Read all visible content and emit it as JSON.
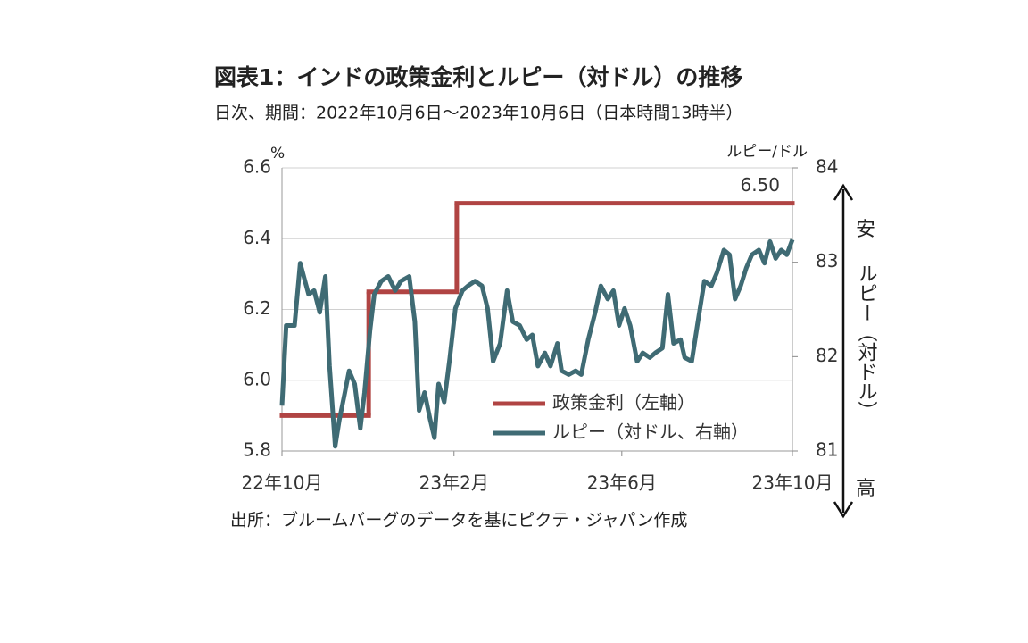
{
  "chart_data": {
    "type": "line",
    "title": "図表1：インドの政策金利とルピー（対ドル）の推移",
    "subtitle": "日次、期間：2022年10月6日～2023年10月6日（日本時間13時半）",
    "source": "出所：ブルームバーグのデータを基にピクテ・ジャパン作成",
    "ylabel": "%",
    "y2label": "ルピー/ドル",
    "ylim": [
      5.8,
      6.6
    ],
    "yticks": [
      5.8,
      {
        "value": 6,
        "label": "6.0"
      },
      6.2,
      6.4,
      6.6
    ],
    "y2lim": [
      81,
      84
    ],
    "y2ticks": [
      81,
      82,
      83,
      84
    ],
    "xlim": [
      "2022-10-06",
      "2023-10-06"
    ],
    "xticks": [
      {
        "value": "2022-10-06",
        "label": "22年10月"
      },
      {
        "value": "2023-02-06",
        "label": "23年2月"
      },
      {
        "value": "2023-06-06",
        "label": "23年6月"
      },
      {
        "value": "2023-10-06",
        "label": "23年10月"
      }
    ],
    "grid": true,
    "legend": "lower right",
    "annotations": {
      "weak": "安",
      "axis_note": "ルピー（対ドル）",
      "strong": "高"
    },
    "series": [
      {
        "name": "政策金利（左軸）",
        "color": "#b04443",
        "step": "post",
        "x": [
          "2022-10-06",
          "2022-12-07",
          "2023-02-08"
        ],
        "values": [
          5.9,
          6.25,
          6.5
        ],
        "value_labels": [
          null,
          null,
          "6.50"
        ]
      },
      {
        "name": "ルピー（対ドル、右軸）",
        "color": "#3f6b74",
        "axis": "y2",
        "x": [
          "2022-10-06",
          "2022-10-09",
          "2022-10-15",
          "2022-10-19",
          "2022-10-25",
          "2022-10-29",
          "2022-11-02",
          "2022-11-06",
          "2022-11-09",
          "2022-11-13",
          "2022-11-16",
          "2022-11-20",
          "2022-11-23",
          "2022-11-27",
          "2022-12-01",
          "2022-12-04",
          "2022-12-08",
          "2022-12-11",
          "2022-12-16",
          "2022-12-21",
          "2022-12-26",
          "2022-12-30",
          "2023-01-05",
          "2023-01-09",
          "2023-01-12",
          "2023-01-16",
          "2023-01-20",
          "2023-01-23",
          "2023-01-26",
          "2023-01-30",
          "2023-02-03",
          "2023-02-07",
          "2023-02-12",
          "2023-02-16",
          "2023-02-21",
          "2023-02-26",
          "2023-03-02",
          "2023-03-06",
          "2023-03-11",
          "2023-03-16",
          "2023-03-20",
          "2023-03-25",
          "2023-03-30",
          "2023-04-03",
          "2023-04-07",
          "2023-04-12",
          "2023-04-16",
          "2023-04-21",
          "2023-04-24",
          "2023-04-29",
          "2023-05-04",
          "2023-05-08",
          "2023-05-13",
          "2023-05-18",
          "2023-05-22",
          "2023-05-27",
          "2023-05-31",
          "2023-06-04",
          "2023-06-08",
          "2023-06-12",
          "2023-06-17",
          "2023-06-21",
          "2023-06-26",
          "2023-06-30",
          "2023-07-05",
          "2023-07-09",
          "2023-07-13",
          "2023-07-18",
          "2023-07-21",
          "2023-07-26",
          "2023-07-30",
          "2023-08-04",
          "2023-08-09",
          "2023-08-13",
          "2023-08-18",
          "2023-08-22",
          "2023-08-26",
          "2023-08-30",
          "2023-09-03",
          "2023-09-07",
          "2023-09-12",
          "2023-09-16",
          "2023-09-20",
          "2023-09-24",
          "2023-09-28",
          "2023-10-02",
          "2023-10-06"
        ],
        "values": [
          81.48,
          82.33,
          82.33,
          82.99,
          82.66,
          82.7,
          82.47,
          82.85,
          81.9,
          81.05,
          81.33,
          81.62,
          81.85,
          81.71,
          81.24,
          81.62,
          82.28,
          82.66,
          82.8,
          82.85,
          82.7,
          82.8,
          82.85,
          82.37,
          81.43,
          81.62,
          81.33,
          81.14,
          81.71,
          81.52,
          81.99,
          82.51,
          82.7,
          82.75,
          82.8,
          82.75,
          82.51,
          81.95,
          82.14,
          82.7,
          82.37,
          82.33,
          82.18,
          82.23,
          81.9,
          82.04,
          81.9,
          82.14,
          81.85,
          81.81,
          81.85,
          81.81,
          82.18,
          82.47,
          82.75,
          82.61,
          82.7,
          82.33,
          82.51,
          82.33,
          81.95,
          82.04,
          81.99,
          82.04,
          82.09,
          82.66,
          82.14,
          82.18,
          81.99,
          81.95,
          82.33,
          82.8,
          82.75,
          82.89,
          83.13,
          83.08,
          82.61,
          82.75,
          82.94,
          83.08,
          83.13,
          82.99,
          83.22,
          83.04,
          83.13,
          83.08,
          83.24
        ]
      }
    ]
  }
}
